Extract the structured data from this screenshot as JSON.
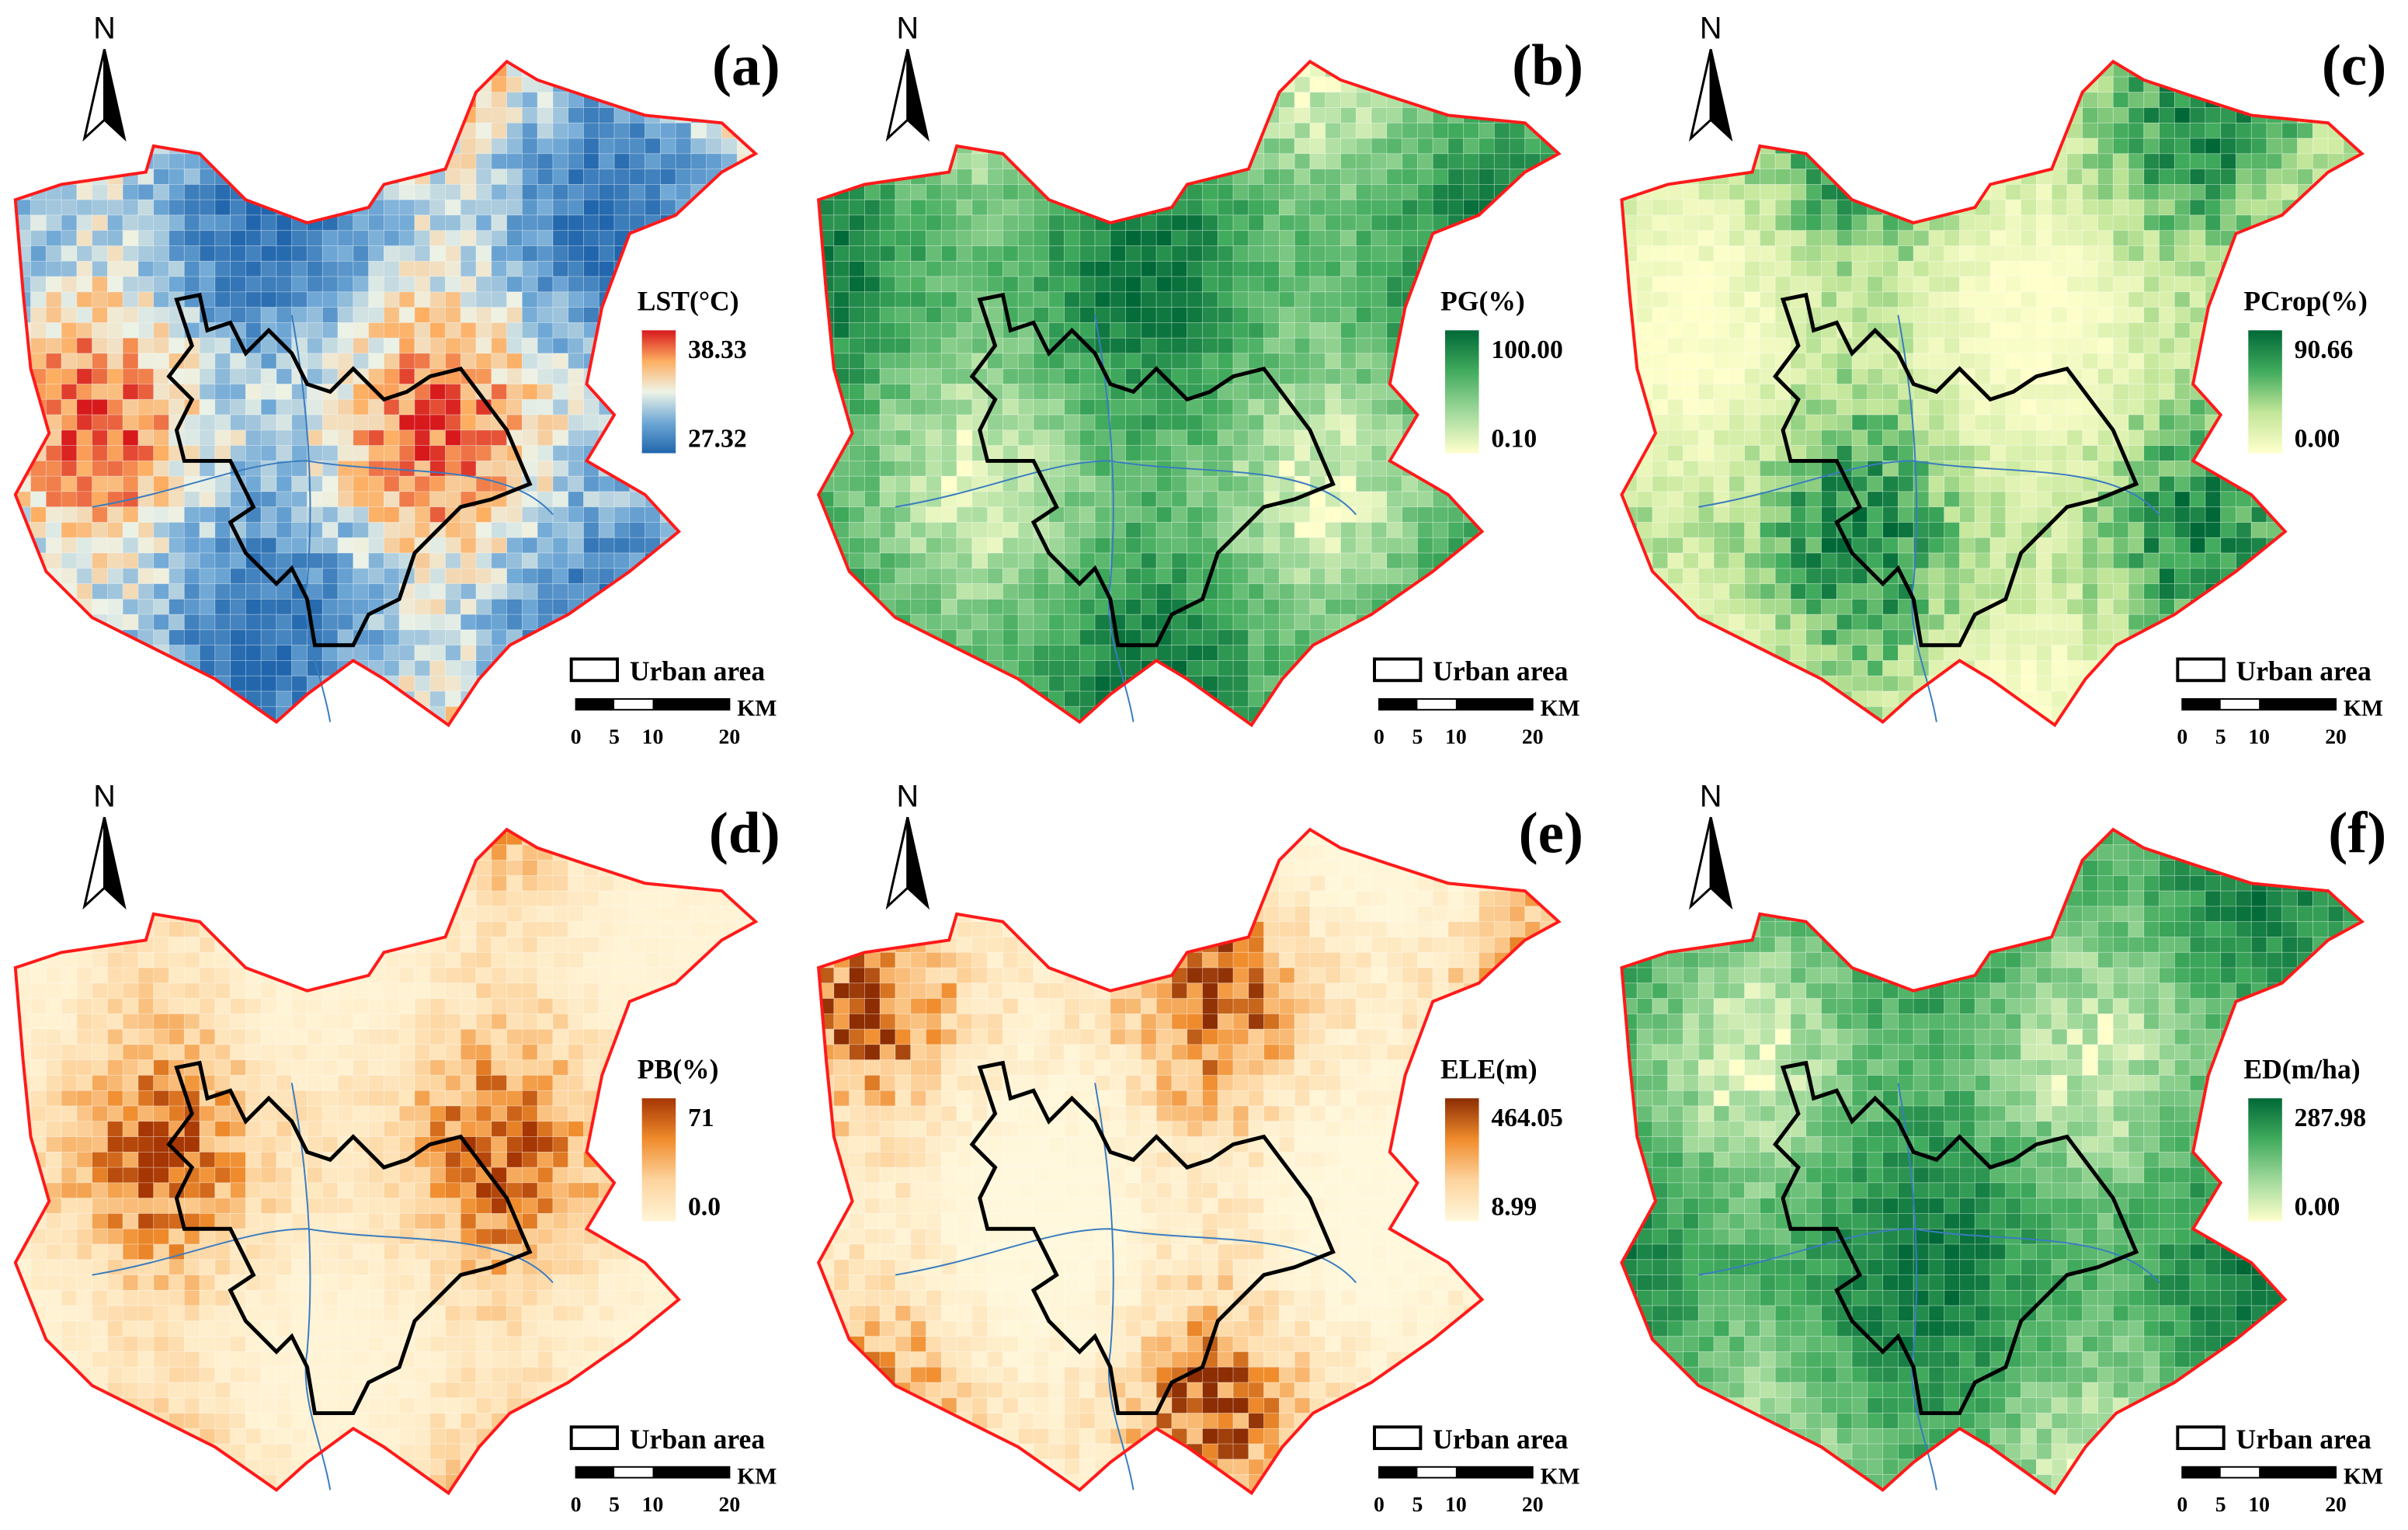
{
  "panels": [
    {
      "label": "(a)",
      "north": "N",
      "legend_title": "LST(°C)",
      "legend_max": "38.33",
      "legend_min": "27.32",
      "colors": [
        "#2166ac",
        "#6fa8d6",
        "#eef3e6",
        "#fdae61",
        "#d7191c"
      ],
      "urban_label": "Urban area",
      "scale_unit": "KM",
      "scale_ticks": [
        "0",
        "5",
        "10",
        "20"
      ]
    },
    {
      "label": "(b)",
      "north": "N",
      "legend_title": "PG(%)",
      "legend_max": "100.00",
      "legend_min": "0.10",
      "colors": [
        "#ffffcc",
        "#a1d99b",
        "#41ab5d",
        "#006837"
      ],
      "urban_label": "Urban area",
      "scale_unit": "KM",
      "scale_ticks": [
        "0",
        "5",
        "10",
        "20"
      ]
    },
    {
      "label": "(c)",
      "north": "N",
      "legend_title": "PCrop(%)",
      "legend_max": "90.66",
      "legend_min": "0.00",
      "colors": [
        "#ffffcc",
        "#c2e699",
        "#41ab5d",
        "#006837"
      ],
      "urban_label": "Urban area",
      "scale_unit": "KM",
      "scale_ticks": [
        "0",
        "5",
        "10",
        "20"
      ]
    },
    {
      "label": "(d)",
      "north": "N",
      "legend_title": "PB(%)",
      "legend_max": "71",
      "legend_min": "0.0",
      "colors": [
        "#fff4d6",
        "#fdd49e",
        "#f08c2c",
        "#a63603"
      ],
      "urban_label": "Urban area",
      "scale_unit": "KM",
      "scale_ticks": [
        "0",
        "5",
        "10",
        "20"
      ]
    },
    {
      "label": "(e)",
      "north": "N",
      "legend_title": "ELE(m)",
      "legend_max": "464.05",
      "legend_min": "8.99",
      "colors": [
        "#fff8dc",
        "#fdd49e",
        "#f08c2c",
        "#8c2d04"
      ],
      "urban_label": "Urban area",
      "scale_unit": "KM",
      "scale_ticks": [
        "0",
        "5",
        "10",
        "20"
      ]
    },
    {
      "label": "(f)",
      "north": "N",
      "legend_title": "ED(m/ha)",
      "legend_max": "287.98",
      "legend_min": "0.00",
      "colors": [
        "#ffffcc",
        "#a1d99b",
        "#41ab5d",
        "#006837"
      ],
      "urban_label": "Urban area",
      "scale_unit": "KM",
      "scale_ticks": [
        "0",
        "5",
        "10",
        "20"
      ]
    }
  ]
}
